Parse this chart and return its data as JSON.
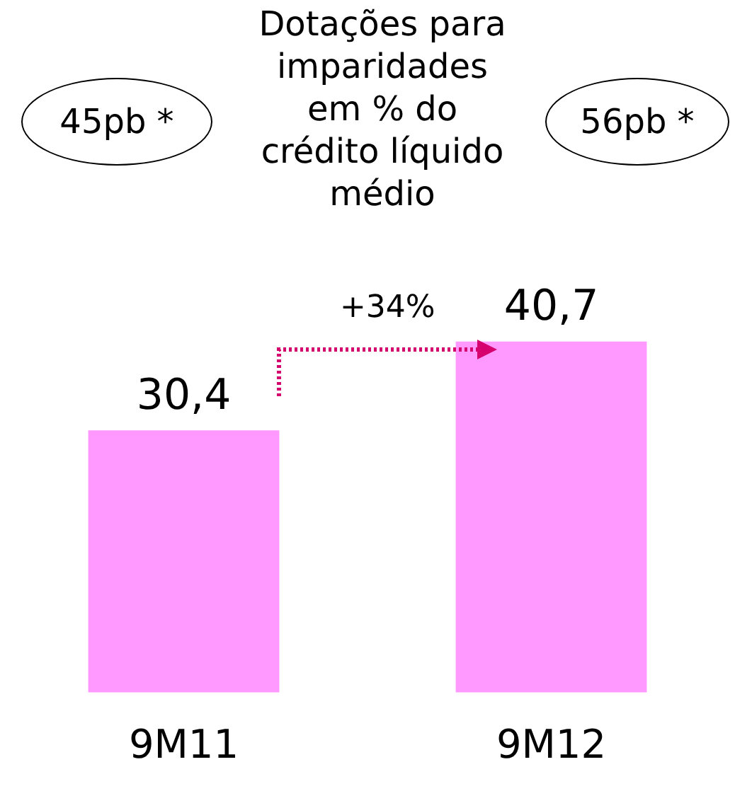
{
  "chart_data": {
    "type": "bar",
    "title": "Dotações para imparidades em % do crédito líquido médio",
    "categories": [
      "9M11",
      "9M12"
    ],
    "values": [
      30.4,
      40.7
    ],
    "color": "#ff99ff",
    "value_labels": [
      "30,4",
      "40,7"
    ],
    "annotations": [
      "45pb *",
      "56pb *",
      "+34%"
    ]
  }
}
